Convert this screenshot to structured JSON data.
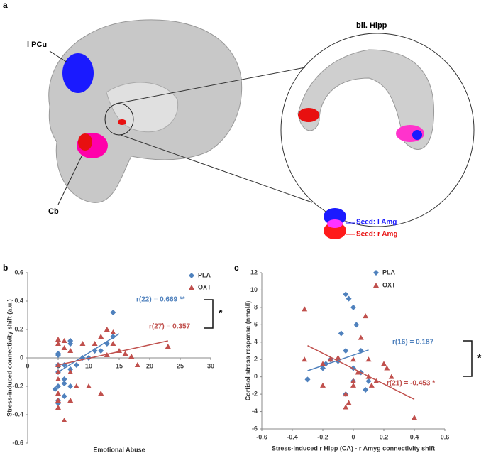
{
  "panel_a": {
    "panel": "a",
    "labels": [
      "l PCu",
      "Cb",
      "bil. Hipp"
    ],
    "legend": [
      "Seed: l Amg",
      "Seed: r Amg"
    ]
  },
  "chart_data": [
    {
      "type": "scatter",
      "panel": "b",
      "x_label": "Emotional Abuse",
      "y_label": "Stress-induced connectivity shift (a.u.)",
      "xlim": [
        0,
        30
      ],
      "xticks": [
        0,
        5,
        10,
        15,
        20,
        25,
        30
      ],
      "ylim": [
        -0.6,
        0.6
      ],
      "yticks": [
        -0.6,
        -0.4,
        -0.2,
        0,
        0.2,
        0.4,
        0.6
      ],
      "axis_cross": "zero",
      "series": [
        {
          "name": "PLA",
          "color": "#4f81bd",
          "marker": "diamond",
          "x": [
            5,
            5,
            5,
            5,
            5,
            5,
            5,
            6,
            6,
            6,
            7,
            7,
            7,
            8,
            9,
            10,
            11,
            12,
            13,
            14,
            14,
            6,
            7,
            4.5
          ],
          "values": [
            -0.3,
            -0.32,
            -0.2,
            -0.1,
            -0.05,
            0.02,
            0.03,
            -0.18,
            -0.15,
            -0.27,
            -0.08,
            0.1,
            0.12,
            -0.05,
            0,
            0,
            0.05,
            0.05,
            0.1,
            0.15,
            0.32,
            -0.05,
            -0.2,
            -0.22
          ],
          "line_x": [
            5,
            15
          ],
          "line_y": [
            -0.1,
            0.17
          ],
          "annotation": "r(22) = 0.669 **"
        },
        {
          "name": "OXT",
          "color": "#c0504d",
          "marker": "triangle",
          "x": [
            5,
            5,
            5,
            5,
            5,
            5,
            5,
            5,
            6,
            6,
            6,
            7,
            7,
            8,
            9,
            10,
            11,
            12,
            13,
            13,
            14,
            14,
            15,
            16,
            17,
            18,
            23,
            7,
            12
          ],
          "values": [
            0.13,
            0.1,
            -0.05,
            -0.1,
            -0.15,
            -0.25,
            -0.3,
            -0.35,
            -0.44,
            0.07,
            0.12,
            -0.1,
            0.05,
            -0.2,
            0.1,
            -0.2,
            0.1,
            0.15,
            0.2,
            0.02,
            0.18,
            0.1,
            0.05,
            0.03,
            0.01,
            -0.05,
            0.08,
            -0.3,
            -0.25
          ],
          "line_x": [
            5,
            23
          ],
          "line_y": [
            -0.05,
            0.12
          ],
          "annotation": "r(27) = 0.357"
        }
      ],
      "significance": "*"
    },
    {
      "type": "scatter",
      "panel": "c",
      "x_label": "Stress-induced r Hipp (CA) - r Amyg connectivity shift",
      "y_label": "Cortisol stress response (nmol/l)",
      "xlim": [
        -0.6,
        0.6
      ],
      "xticks": [
        -0.6,
        -0.4,
        -0.2,
        0,
        0.2,
        0.4,
        0.6
      ],
      "ylim": [
        -6,
        12
      ],
      "yticks": [
        -6,
        -4,
        -2,
        0,
        2,
        4,
        6,
        8,
        10,
        12
      ],
      "axis_cross": "min",
      "series": [
        {
          "name": "PLA",
          "color": "#4f81bd",
          "marker": "diamond",
          "x": [
            -0.3,
            -0.2,
            -0.18,
            -0.15,
            -0.1,
            -0.05,
            -0.03,
            0,
            0.02,
            -0.08,
            -0.05,
            0,
            0.05,
            0.1,
            0.08,
            -0.05,
            0,
            0.05
          ],
          "values": [
            -0.3,
            1,
            1.5,
            2,
            1.8,
            9.5,
            9,
            8,
            6,
            5,
            3,
            1,
            3,
            -0.5,
            -1.5,
            -2,
            -0.5,
            0.5
          ],
          "line_x": [
            -0.3,
            0.1
          ],
          "line_y": [
            0.7,
            3.1
          ],
          "annotation": "r(16) = 0.187"
        },
        {
          "name": "OXT",
          "color": "#c0504d",
          "marker": "triangle",
          "x": [
            -0.32,
            -0.32,
            -0.2,
            -0.2,
            -0.15,
            -0.1,
            -0.05,
            -0.05,
            0,
            0,
            0,
            0.03,
            0.05,
            0.08,
            0.1,
            0.1,
            0.12,
            0.15,
            0.2,
            0.22,
            0.25,
            0.4,
            -0.03
          ],
          "values": [
            7.8,
            2,
            -1,
            1.5,
            2,
            2.2,
            -3.5,
            -2,
            2,
            -0.5,
            -1,
            0.5,
            4.5,
            7,
            2,
            0,
            -1,
            -0.5,
            1.5,
            1,
            0,
            -4.7,
            -3
          ],
          "line_x": [
            -0.3,
            0.4
          ],
          "line_y": [
            3.6,
            -2.6
          ],
          "annotation": "r(21) = -0.453 *"
        }
      ],
      "significance": "*"
    }
  ]
}
